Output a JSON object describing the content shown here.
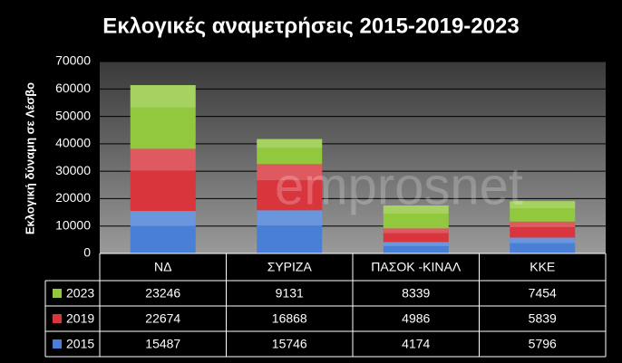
{
  "chart_data": {
    "type": "bar",
    "stacked": true,
    "title": "Εκλογικές αναμετρήσεις 2015-2019-2023",
    "y_label": "Εκλογική δύναμη σε Λέσβο",
    "watermark": "emprosnet",
    "categories": [
      "ΝΔ",
      "ΣΥΡΙΖΑ",
      "ΠΑΣΟΚ -ΚΙΝΑΛ",
      "ΚΚΕ"
    ],
    "series": [
      {
        "name": "2015",
        "color": "#4a7fd6",
        "values": [
          15487,
          15746,
          4174,
          5796
        ]
      },
      {
        "name": "2019",
        "color": "#d8353d",
        "values": [
          22674,
          16868,
          4986,
          5839
        ]
      },
      {
        "name": "2023",
        "color": "#92c83e",
        "values": [
          23246,
          9131,
          8339,
          7454
        ]
      }
    ],
    "ylim": [
      0,
      70000
    ],
    "yticks": [
      0,
      10000,
      20000,
      30000,
      40000,
      50000,
      60000,
      70000
    ],
    "grid": true,
    "data_table": true
  }
}
